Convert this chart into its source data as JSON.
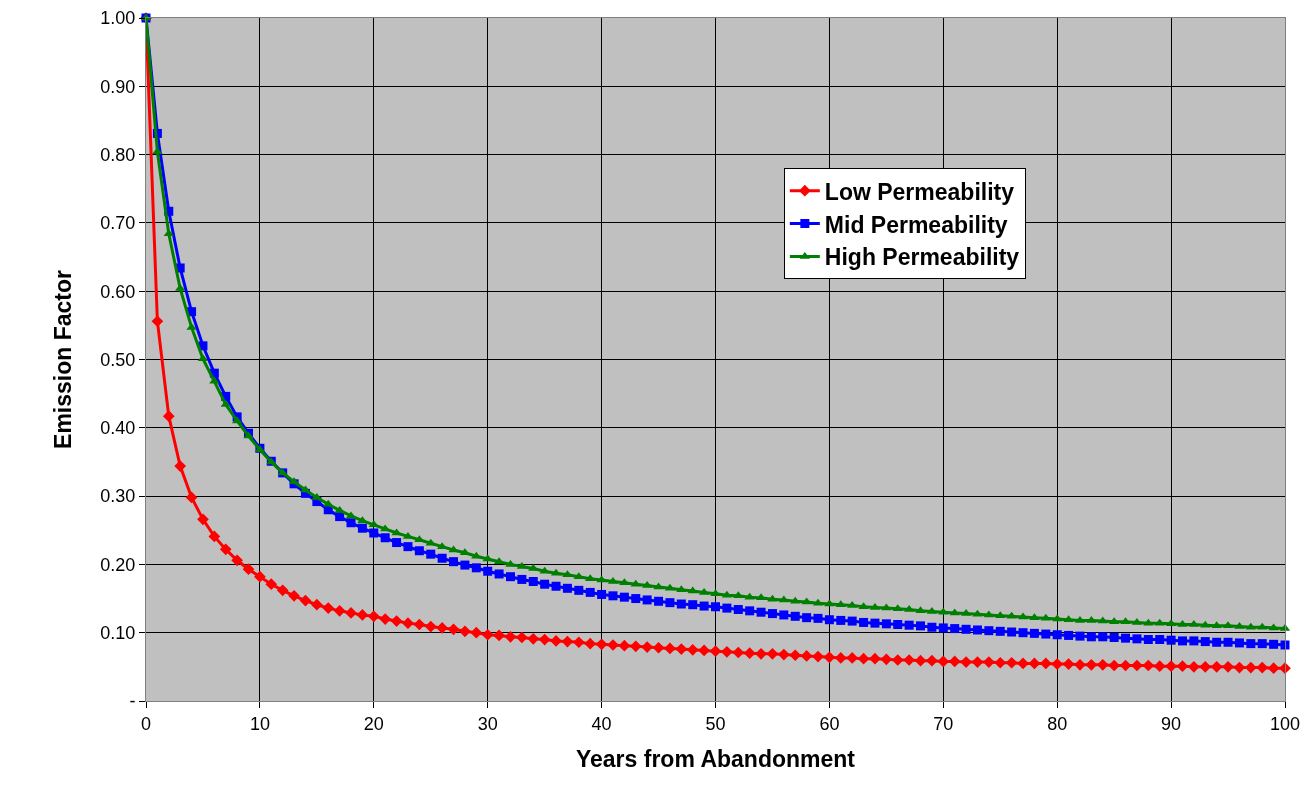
{
  "chart_data": {
    "type": "line",
    "xlabel": "Years from Abandonment",
    "ylabel": "Emission Factor",
    "x": [
      0,
      1,
      2,
      3,
      4,
      5,
      6,
      7,
      8,
      9,
      10,
      11,
      12,
      13,
      14,
      15,
      16,
      17,
      18,
      19,
      20,
      21,
      22,
      23,
      24,
      25,
      26,
      27,
      28,
      29,
      30,
      31,
      32,
      33,
      34,
      35,
      36,
      37,
      38,
      39,
      40,
      41,
      42,
      43,
      44,
      45,
      46,
      47,
      48,
      49,
      50,
      51,
      52,
      53,
      54,
      55,
      56,
      57,
      58,
      59,
      60,
      61,
      62,
      63,
      64,
      65,
      66,
      67,
      68,
      69,
      70,
      71,
      72,
      73,
      74,
      75,
      76,
      77,
      78,
      79,
      80,
      81,
      82,
      83,
      84,
      85,
      86,
      87,
      88,
      89,
      90,
      91,
      92,
      93,
      94,
      95,
      96,
      97,
      98,
      99,
      100
    ],
    "series": [
      {
        "name": "Low Permeability",
        "color": "#ff0000",
        "marker": "diamond",
        "values": [
          1.0,
          0.556,
          0.417,
          0.344,
          0.298,
          0.266,
          0.241,
          0.222,
          0.206,
          0.193,
          0.182,
          0.171,
          0.162,
          0.154,
          0.147,
          0.141,
          0.136,
          0.132,
          0.129,
          0.126,
          0.124,
          0.12,
          0.117,
          0.114,
          0.112,
          0.109,
          0.107,
          0.105,
          0.102,
          0.1,
          0.097,
          0.096,
          0.094,
          0.093,
          0.091,
          0.09,
          0.088,
          0.087,
          0.086,
          0.084,
          0.083,
          0.082,
          0.081,
          0.08,
          0.079,
          0.078,
          0.077,
          0.076,
          0.075,
          0.074,
          0.073,
          0.072,
          0.071,
          0.07,
          0.069,
          0.069,
          0.068,
          0.067,
          0.066,
          0.065,
          0.064,
          0.063,
          0.063,
          0.062,
          0.062,
          0.061,
          0.06,
          0.06,
          0.059,
          0.059,
          0.058,
          0.058,
          0.057,
          0.057,
          0.057,
          0.056,
          0.056,
          0.055,
          0.055,
          0.055,
          0.054,
          0.054,
          0.053,
          0.053,
          0.053,
          0.052,
          0.052,
          0.052,
          0.052,
          0.051,
          0.051,
          0.051,
          0.05,
          0.05,
          0.05,
          0.05,
          0.049,
          0.049,
          0.049,
          0.048,
          0.048
        ]
      },
      {
        "name": "Mid Permeability",
        "color": "#0000ff",
        "marker": "square",
        "values": [
          1.0,
          0.831,
          0.717,
          0.634,
          0.57,
          0.52,
          0.48,
          0.446,
          0.416,
          0.392,
          0.37,
          0.351,
          0.334,
          0.318,
          0.304,
          0.292,
          0.28,
          0.27,
          0.261,
          0.253,
          0.246,
          0.239,
          0.232,
          0.226,
          0.22,
          0.215,
          0.209,
          0.204,
          0.199,
          0.195,
          0.19,
          0.186,
          0.182,
          0.178,
          0.175,
          0.171,
          0.168,
          0.165,
          0.162,
          0.159,
          0.156,
          0.154,
          0.152,
          0.15,
          0.148,
          0.146,
          0.144,
          0.142,
          0.141,
          0.139,
          0.138,
          0.136,
          0.134,
          0.132,
          0.13,
          0.128,
          0.126,
          0.124,
          0.122,
          0.121,
          0.119,
          0.118,
          0.117,
          0.115,
          0.114,
          0.113,
          0.112,
          0.111,
          0.11,
          0.108,
          0.107,
          0.106,
          0.105,
          0.104,
          0.103,
          0.102,
          0.101,
          0.1,
          0.099,
          0.098,
          0.097,
          0.096,
          0.095,
          0.094,
          0.094,
          0.093,
          0.092,
          0.091,
          0.09,
          0.09,
          0.089,
          0.088,
          0.088,
          0.087,
          0.086,
          0.086,
          0.085,
          0.084,
          0.084,
          0.083,
          0.082
        ]
      },
      {
        "name": "High Permeability",
        "color": "#008000",
        "marker": "triangle",
        "values": [
          1.0,
          0.804,
          0.684,
          0.604,
          0.547,
          0.501,
          0.468,
          0.434,
          0.41,
          0.388,
          0.368,
          0.35,
          0.334,
          0.321,
          0.309,
          0.298,
          0.288,
          0.279,
          0.271,
          0.264,
          0.258,
          0.252,
          0.246,
          0.241,
          0.236,
          0.231,
          0.226,
          0.221,
          0.217,
          0.212,
          0.208,
          0.204,
          0.2,
          0.197,
          0.194,
          0.19,
          0.187,
          0.185,
          0.182,
          0.179,
          0.177,
          0.175,
          0.173,
          0.171,
          0.169,
          0.167,
          0.165,
          0.163,
          0.161,
          0.159,
          0.157,
          0.155,
          0.154,
          0.152,
          0.151,
          0.149,
          0.148,
          0.146,
          0.145,
          0.143,
          0.142,
          0.141,
          0.14,
          0.138,
          0.137,
          0.136,
          0.135,
          0.134,
          0.132,
          0.131,
          0.13,
          0.129,
          0.128,
          0.127,
          0.126,
          0.125,
          0.124,
          0.123,
          0.122,
          0.121,
          0.12,
          0.119,
          0.118,
          0.118,
          0.117,
          0.116,
          0.116,
          0.115,
          0.114,
          0.114,
          0.113,
          0.112,
          0.112,
          0.111,
          0.11,
          0.11,
          0.109,
          0.108,
          0.108,
          0.107,
          0.106
        ]
      }
    ],
    "xlim": [
      0,
      100
    ],
    "xticks": [
      0,
      10,
      20,
      30,
      40,
      50,
      60,
      70,
      80,
      90,
      100
    ],
    "ylim": [
      0,
      1
    ],
    "yticks": [
      {
        "value": 0,
        "label": "-"
      },
      {
        "value": 0.1,
        "label": "0.10"
      },
      {
        "value": 0.2,
        "label": "0.20"
      },
      {
        "value": 0.3,
        "label": "0.30"
      },
      {
        "value": 0.4,
        "label": "0.40"
      },
      {
        "value": 0.5,
        "label": "0.50"
      },
      {
        "value": 0.6,
        "label": "0.60"
      },
      {
        "value": 0.7,
        "label": "0.70"
      },
      {
        "value": 0.8,
        "label": "0.80"
      },
      {
        "value": 0.9,
        "label": "0.90"
      },
      {
        "value": 1,
        "label": "1.00"
      }
    ],
    "grid": true,
    "legend": "right",
    "line_style": "solid"
  }
}
